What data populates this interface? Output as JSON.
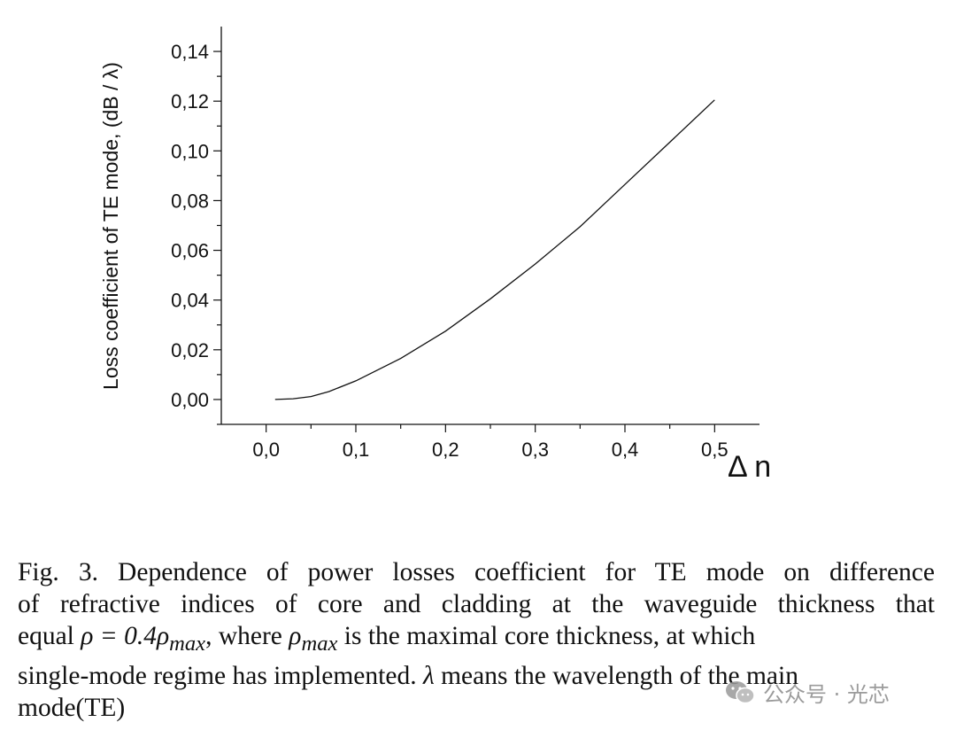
{
  "chart_data": {
    "type": "line",
    "xlabel": "Δ n",
    "ylabel": "Loss coefficient of TE mode, (dB / λ)",
    "xlim": [
      -0.05,
      0.55
    ],
    "ylim": [
      -0.01,
      0.15
    ],
    "x_ticks": [
      "0,0",
      "0,1",
      "0,2",
      "0,3",
      "0,4",
      "0,5"
    ],
    "x_tick_values": [
      0.0,
      0.1,
      0.2,
      0.3,
      0.4,
      0.5
    ],
    "y_ticks": [
      "0,00",
      "0,02",
      "0,04",
      "0,06",
      "0,08",
      "0,10",
      "0,12",
      "0,14"
    ],
    "y_tick_values": [
      0.0,
      0.02,
      0.04,
      0.06,
      0.08,
      0.1,
      0.12,
      0.14
    ],
    "grid": false,
    "series": [
      {
        "x": [
          0.01,
          0.03,
          0.05,
          0.07,
          0.1,
          0.15,
          0.2,
          0.25,
          0.3,
          0.35,
          0.4,
          0.45,
          0.5
        ],
        "y": [
          0.0,
          0.0003,
          0.0012,
          0.0032,
          0.0075,
          0.0165,
          0.0275,
          0.0405,
          0.0545,
          0.0695,
          0.0865,
          0.1035,
          0.1205
        ]
      }
    ]
  },
  "caption": {
    "line1": "Fig. 3.    Dependence of power losses coefficient for TE mode on difference",
    "line2": "of refractive indices of core and cladding at the waveguide thickness that",
    "line3_a": "equal ",
    "line3_math1": "ρ = 0.4ρ",
    "line3_sub1": "max",
    "line3_b": ", where ",
    "line3_math2": "ρ",
    "line3_sub2": "max",
    "line3_c": " is the maximal core thickness, at which",
    "line4_a": "single-mode regime has implemented. ",
    "line4_math": "λ",
    "line4_b": " means the wavelength of the main",
    "line5": "mode(TE)"
  },
  "watermark": {
    "text": "公众号 · 光芯",
    "icon": "wechat-icon"
  }
}
